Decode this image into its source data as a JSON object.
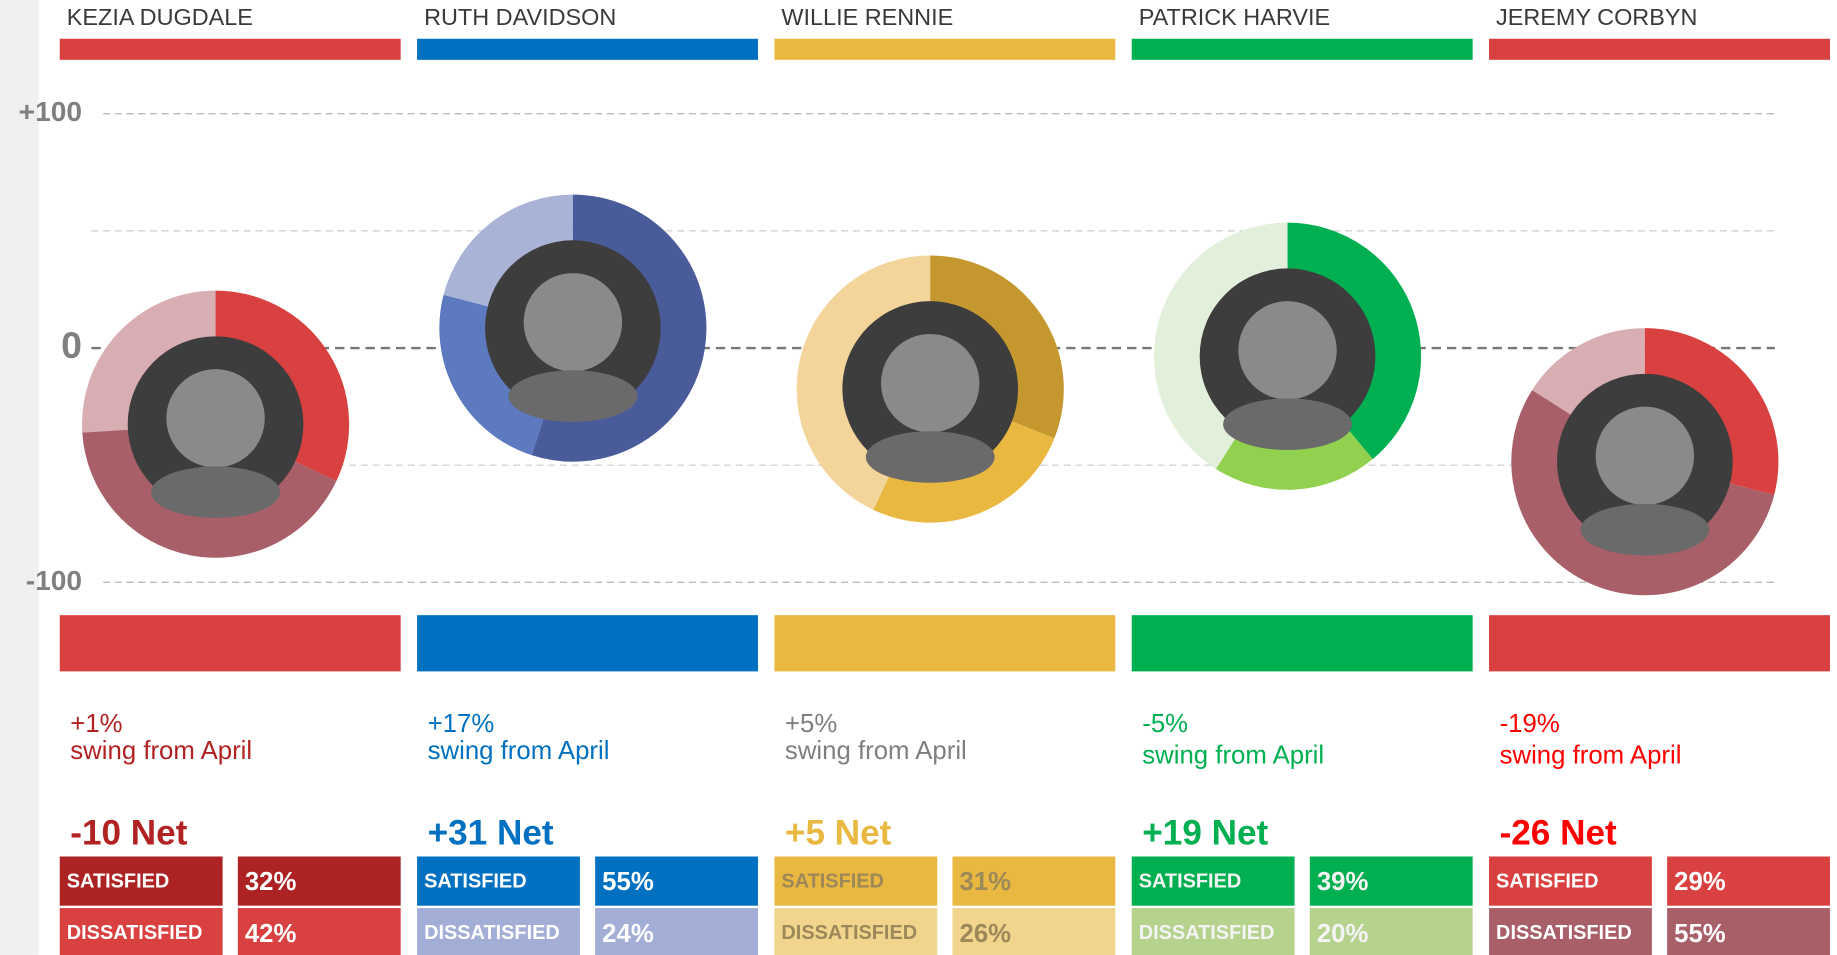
{
  "chart_data": {
    "type": "donut",
    "ylim": [
      -100,
      100
    ],
    "yticks": [
      {
        "value": 100,
        "label": "+100"
      },
      0,
      -100
    ],
    "minor_gridlines": [
      50,
      -50
    ],
    "satisfied_text": "SATISFIED",
    "dissatisfied_text": "DISSATISFIED",
    "swing_text": "swing from April",
    "leaders": [
      {
        "name": "KEZIA DUGDALE",
        "color": "#d9403f",
        "satisfied_color": "#d94040",
        "dissatisfied_color": "#a85f68",
        "other_color": "#d9aeb3",
        "text_color": "#b22222",
        "satisfied_row": "#ad2323",
        "dissatisfied_row": "#d94040",
        "row_text": "#ffffff",
        "swing": 1,
        "swing_label": "+1%",
        "net": -10,
        "net_label": "-10 Net",
        "satisfied": 32,
        "satisfied_label": "32%",
        "dissatisfied": 42,
        "dissatisfied_label": "42%"
      },
      {
        "name": "RUTH DAVIDSON",
        "color": "#0070c0",
        "satisfied_color": "#4a5b9a",
        "dissatisfied_color": "#5d79c0",
        "other_color": "#a9b3d6",
        "text_color": "#0070c0",
        "satisfied_row": "#0070c0",
        "dissatisfied_row": "#a2aed6",
        "row_text": "#ffffff",
        "swing": 17,
        "swing_label": "+17%",
        "net": 31,
        "net_label": "+31 Net",
        "satisfied": 55,
        "satisfied_label": "55%",
        "dissatisfied": 24,
        "dissatisfied_label": "24%"
      },
      {
        "name": "WILLIE RENNIE",
        "color": "#e9b840",
        "satisfied_color": "#c4982f",
        "dissatisfied_color": "#e9b840",
        "other_color": "#f3d49b",
        "text_color": "#7f7f7f",
        "satisfied_row": "#e9b840",
        "dissatisfied_row": "#f2d58d",
        "row_text": "#9c8858",
        "swing": 5,
        "swing_label": "+5%",
        "net": 5,
        "net_label": "+5 Net",
        "satisfied": 31,
        "satisfied_label": "31%",
        "dissatisfied": 26,
        "dissatisfied_label": "26%"
      },
      {
        "name": "PATRICK HARVIE",
        "color": "#00b050",
        "satisfied_color": "#00b050",
        "dissatisfied_color": "#92d050",
        "other_color": "#e2efda",
        "text_color": "#00b050",
        "satisfied_row": "#00b050",
        "dissatisfied_row": "#b5d38d",
        "row_text": "#f4f4f4",
        "swing": -5,
        "swing_label": "-5%",
        "net": 19,
        "net_label": "+19 Net",
        "satisfied": 39,
        "satisfied_label": "39%",
        "dissatisfied": 20,
        "dissatisfied_label": "20%"
      },
      {
        "name": "JEREMY CORBYN",
        "color": "#d94040",
        "satisfied_color": "#d94040",
        "dissatisfied_color": "#a85f68",
        "other_color": "#d9aeb3",
        "text_color": "#ff0000",
        "satisfied_row": "#d94040",
        "dissatisfied_row": "#a85f68",
        "row_text": "#ffffff",
        "swing": -19,
        "swing_label": "-19%",
        "net": -26,
        "net_label": "-26 Net",
        "satisfied": 29,
        "satisfied_label": "29%",
        "dissatisfied": 55,
        "dissatisfied_label": "55%"
      }
    ]
  }
}
